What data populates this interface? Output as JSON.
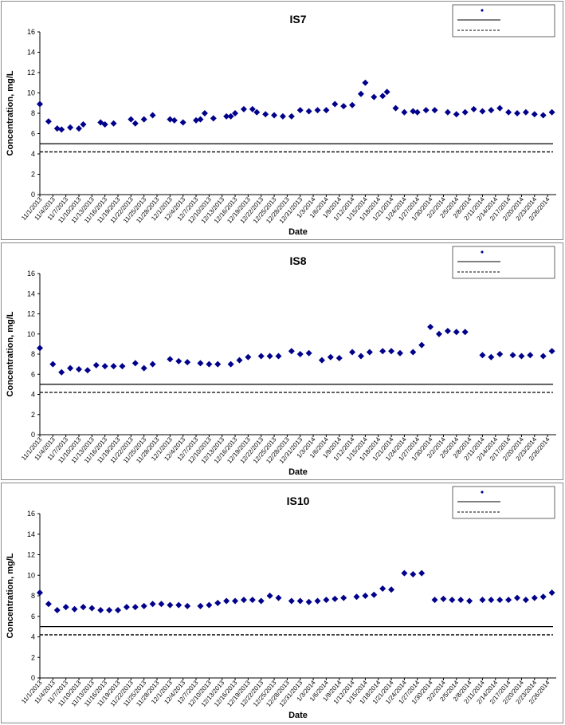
{
  "chart_data": [
    {
      "type": "scatter",
      "title": "IS7",
      "xlabel": "Date",
      "ylabel": "Concentration, mg/L",
      "ylim": [
        0,
        16
      ],
      "yticks": [
        0,
        2,
        4,
        6,
        8,
        10,
        12,
        14,
        16
      ],
      "xlim": [
        "11/1/2013",
        "2/28/2014"
      ],
      "xticks": [
        "11/1/2013",
        "11/4/2013",
        "11/7/2013",
        "11/10/2013",
        "11/13/2013",
        "11/16/2013",
        "11/19/2013",
        "11/22/2013",
        "11/25/2013",
        "11/28/2013",
        "12/1/2013",
        "12/4/2013",
        "12/7/2013",
        "12/10/2013",
        "12/13/2013",
        "12/16/2013",
        "12/19/2013",
        "12/22/2013",
        "12/25/2013",
        "12/28/2013",
        "12/31/2013",
        "1/3/2014",
        "1/6/2014",
        "1/9/2014",
        "1/12/2014",
        "1/15/2014",
        "1/18/2014",
        "1/21/2014",
        "1/24/2014",
        "1/27/2014",
        "1/30/2014",
        "2/2/2014",
        "2/5/2014",
        "2/8/2014",
        "2/11/2014",
        "2/14/2014",
        "2/17/2014",
        "2/20/2014",
        "2/23/2014",
        "2/26/2014"
      ],
      "grid": false,
      "legend_position": "top-right",
      "series": [
        {
          "style": "diamond",
          "color": "#00008B",
          "x": [
            "11/1/2013",
            "11/3/2013",
            "11/5/2013",
            "11/6/2013",
            "11/8/2013",
            "11/10/2013",
            "11/11/2013",
            "11/15/2013",
            "11/16/2013",
            "11/18/2013",
            "11/22/2013",
            "11/23/2013",
            "11/25/2013",
            "11/27/2013",
            "12/1/2013",
            "12/2/2013",
            "12/4/2013",
            "12/7/2013",
            "12/8/2013",
            "12/9/2013",
            "12/11/2013",
            "12/14/2013",
            "12/15/2013",
            "12/16/2013",
            "12/18/2013",
            "12/20/2013",
            "12/21/2013",
            "12/23/2013",
            "12/25/2013",
            "12/27/2013",
            "12/29/2013",
            "12/31/2013",
            "1/2/2014",
            "1/4/2014",
            "1/6/2014",
            "1/8/2014",
            "1/10/2014",
            "1/12/2014",
            "1/14/2014",
            "1/15/2014",
            "1/17/2014",
            "1/19/2014",
            "1/20/2014",
            "1/22/2014",
            "1/24/2014",
            "1/26/2014",
            "1/27/2014",
            "1/29/2014",
            "1/31/2014",
            "2/3/2014",
            "2/5/2014",
            "2/7/2014",
            "2/9/2014",
            "2/11/2014",
            "2/13/2014",
            "2/15/2014",
            "2/17/2014",
            "2/19/2014",
            "2/21/2014",
            "2/23/2014",
            "2/25/2014",
            "2/27/2014"
          ],
          "y": [
            8.9,
            7.2,
            6.5,
            6.4,
            6.6,
            6.5,
            6.9,
            7.1,
            6.9,
            7.0,
            7.4,
            7.0,
            7.4,
            7.8,
            7.4,
            7.3,
            7.1,
            7.3,
            7.4,
            8.0,
            7.5,
            7.7,
            7.7,
            8.0,
            8.4,
            8.4,
            8.1,
            7.9,
            7.8,
            7.7,
            7.7,
            8.3,
            8.2,
            8.3,
            8.3,
            8.9,
            8.7,
            8.8,
            9.9,
            11.0,
            9.6,
            9.7,
            10.1,
            8.5,
            8.1,
            8.2,
            8.1,
            8.3,
            8.3,
            8.1,
            7.9,
            8.1,
            8.4,
            8.2,
            8.3,
            8.5,
            8.1,
            8.0,
            8.1,
            7.9,
            7.8,
            8.1
          ]
        },
        {
          "style": "solid-line",
          "color": "#000000",
          "y": 5.0
        },
        {
          "style": "dashed-line",
          "color": "#000000",
          "y": 4.2
        }
      ]
    },
    {
      "type": "scatter",
      "title": "IS8",
      "xlabel": "Date",
      "ylabel": "Concentration, mg/L",
      "ylim": [
        0,
        16
      ],
      "yticks": [
        0,
        2,
        4,
        6,
        8,
        10,
        12,
        14,
        16
      ],
      "xlim": [
        "11/1/2013",
        "2/28/2014"
      ],
      "xticks": [
        "11/1/2013",
        "11/4/2013",
        "11/7/2013",
        "11/10/2013",
        "11/13/2013",
        "11/16/2013",
        "11/19/2013",
        "11/22/2013",
        "11/25/2013",
        "11/28/2013",
        "12/1/2013",
        "12/4/2013",
        "12/7/2013",
        "12/10/2013",
        "12/13/2013",
        "12/16/2013",
        "12/19/2013",
        "12/22/2013",
        "12/25/2013",
        "12/28/2013",
        "12/31/2013",
        "1/3/2014",
        "1/6/2014",
        "1/9/2014",
        "1/12/2014",
        "1/15/2014",
        "1/18/2014",
        "1/21/2014",
        "1/24/2014",
        "1/27/2014",
        "1/30/2014",
        "2/2/2014",
        "2/5/2014",
        "2/8/2014",
        "2/11/2014",
        "2/14/2014",
        "2/17/2014",
        "2/20/2014",
        "2/23/2014",
        "2/26/2014"
      ],
      "grid": false,
      "legend_position": "top-right",
      "series": [
        {
          "style": "diamond",
          "color": "#00008B",
          "x": [
            "11/1/2013",
            "11/4/2013",
            "11/6/2013",
            "11/8/2013",
            "11/10/2013",
            "11/12/2013",
            "11/14/2013",
            "11/16/2013",
            "11/18/2013",
            "11/20/2013",
            "11/23/2013",
            "11/25/2013",
            "11/27/2013",
            "12/1/2013",
            "12/3/2013",
            "12/5/2013",
            "12/8/2013",
            "12/10/2013",
            "12/12/2013",
            "12/15/2013",
            "12/17/2013",
            "12/19/2013",
            "12/22/2013",
            "12/24/2013",
            "12/26/2013",
            "12/29/2013",
            "12/31/2013",
            "1/2/2014",
            "1/5/2014",
            "1/7/2014",
            "1/9/2014",
            "1/12/2014",
            "1/14/2014",
            "1/16/2014",
            "1/19/2014",
            "1/21/2014",
            "1/23/2014",
            "1/26/2014",
            "1/28/2014",
            "1/30/2014",
            "2/1/2014",
            "2/3/2014",
            "2/5/2014",
            "2/7/2014",
            "2/11/2014",
            "2/13/2014",
            "2/15/2014",
            "2/18/2014",
            "2/20/2014",
            "2/22/2014",
            "2/25/2014",
            "2/27/2014"
          ],
          "y": [
            8.6,
            7.0,
            6.2,
            6.6,
            6.5,
            6.4,
            6.9,
            6.8,
            6.8,
            6.8,
            7.1,
            6.6,
            7.0,
            7.5,
            7.3,
            7.2,
            7.1,
            7.0,
            7.0,
            7.0,
            7.4,
            7.7,
            7.8,
            7.8,
            7.8,
            8.3,
            8.0,
            8.1,
            7.4,
            7.7,
            7.6,
            8.2,
            7.8,
            8.2,
            8.3,
            8.3,
            8.1,
            8.2,
            8.9,
            10.7,
            10.0,
            10.3,
            10.2,
            10.2,
            7.9,
            7.7,
            8.0,
            7.9,
            7.8,
            7.9,
            7.8,
            8.3
          ]
        },
        {
          "style": "solid-line",
          "color": "#000000",
          "y": 5.0
        },
        {
          "style": "dashed-line",
          "color": "#000000",
          "y": 4.2
        }
      ]
    },
    {
      "type": "scatter",
      "title": "IS10",
      "xlabel": "Date",
      "ylabel": "Concentration, mg/L",
      "ylim": [
        0,
        16
      ],
      "yticks": [
        0,
        2,
        4,
        6,
        8,
        10,
        12,
        14,
        16
      ],
      "xlim": [
        "11/1/2013",
        "2/28/2014"
      ],
      "xticks": [
        "11/1/2013",
        "11/4/2013",
        "11/7/2013",
        "11/10/2013",
        "11/13/2013",
        "11/16/2013",
        "11/19/2013",
        "11/22/2013",
        "11/25/2013",
        "11/28/2013",
        "12/1/2013",
        "12/4/2013",
        "12/7/2013",
        "12/10/2013",
        "12/13/2013",
        "12/16/2013",
        "12/19/2013",
        "12/22/2013",
        "12/25/2013",
        "12/28/2013",
        "12/31/2013",
        "1/3/2014",
        "1/6/2014",
        "1/9/2014",
        "1/12/2014",
        "1/15/2014",
        "1/18/2014",
        "1/21/2014",
        "1/24/2014",
        "1/27/2014",
        "1/30/2014",
        "2/2/2014",
        "2/5/2014",
        "2/8/2014",
        "2/11/2014",
        "2/14/2014",
        "2/17/2014",
        "2/20/2014",
        "2/23/2014",
        "2/26/2014"
      ],
      "grid": false,
      "legend_position": "top-right",
      "series": [
        {
          "style": "diamond",
          "color": "#00008B",
          "x": [
            "11/1/2013",
            "11/3/2013",
            "11/5/2013",
            "11/7/2013",
            "11/9/2013",
            "11/11/2013",
            "11/13/2013",
            "11/15/2013",
            "11/17/2013",
            "11/19/2013",
            "11/21/2013",
            "11/23/2013",
            "11/25/2013",
            "11/27/2013",
            "11/29/2013",
            "12/1/2013",
            "12/3/2013",
            "12/5/2013",
            "12/8/2013",
            "12/10/2013",
            "12/12/2013",
            "12/14/2013",
            "12/16/2013",
            "12/18/2013",
            "12/20/2013",
            "12/22/2013",
            "12/24/2013",
            "12/26/2013",
            "12/29/2013",
            "12/31/2013",
            "1/2/2014",
            "1/4/2014",
            "1/6/2014",
            "1/8/2014",
            "1/10/2014",
            "1/13/2014",
            "1/15/2014",
            "1/17/2014",
            "1/19/2014",
            "1/21/2014",
            "1/24/2014",
            "1/26/2014",
            "1/28/2014",
            "1/31/2014",
            "2/2/2014",
            "2/4/2014",
            "2/6/2014",
            "2/8/2014",
            "2/11/2014",
            "2/13/2014",
            "2/15/2014",
            "2/17/2014",
            "2/19/2014",
            "2/21/2014",
            "2/23/2014",
            "2/25/2014",
            "2/27/2014"
          ],
          "y": [
            8.3,
            7.2,
            6.6,
            6.9,
            6.7,
            6.9,
            6.8,
            6.6,
            6.6,
            6.6,
            6.9,
            6.9,
            7.0,
            7.2,
            7.2,
            7.1,
            7.1,
            7.0,
            7.0,
            7.1,
            7.3,
            7.5,
            7.5,
            7.6,
            7.6,
            7.5,
            8.0,
            7.8,
            7.5,
            7.5,
            7.4,
            7.5,
            7.6,
            7.7,
            7.8,
            7.9,
            8.0,
            8.1,
            8.7,
            8.6,
            10.2,
            10.1,
            10.2,
            7.6,
            7.7,
            7.6,
            7.6,
            7.5,
            7.6,
            7.6,
            7.6,
            7.6,
            7.8,
            7.6,
            7.8,
            7.9,
            8.3
          ]
        },
        {
          "style": "solid-line",
          "color": "#000000",
          "y": 5.0
        },
        {
          "style": "dashed-line",
          "color": "#000000",
          "y": 4.2
        }
      ]
    }
  ]
}
